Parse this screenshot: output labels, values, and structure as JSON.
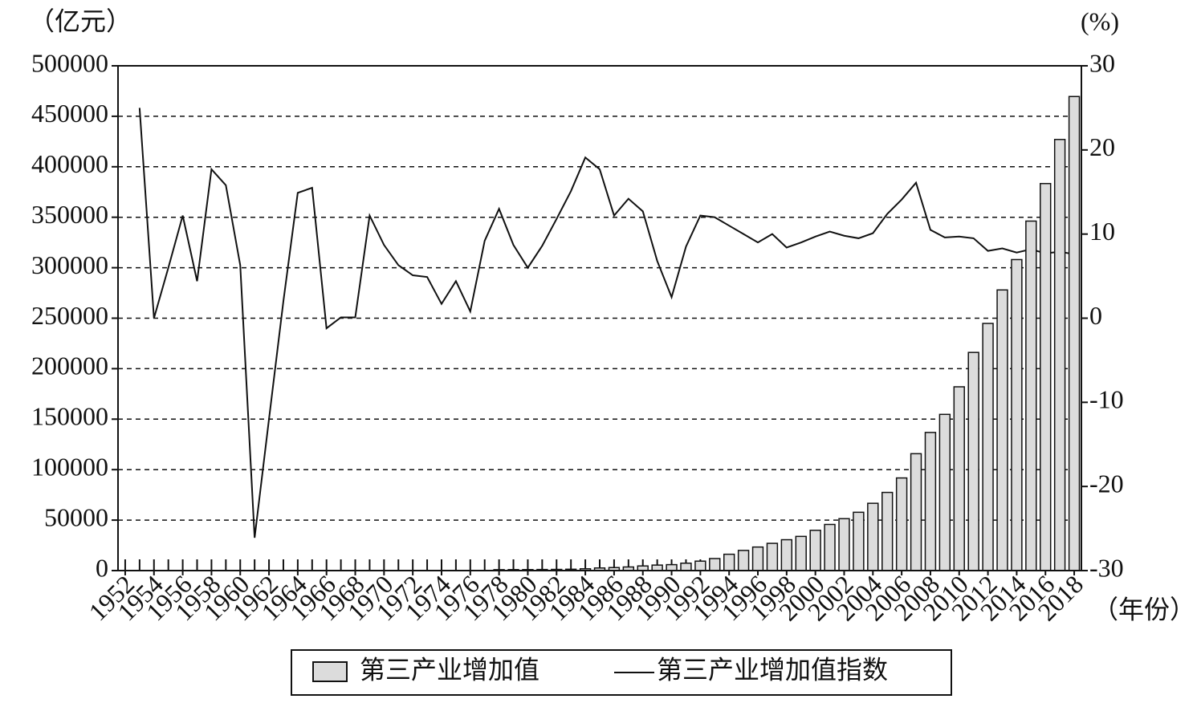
{
  "chart_data": {
    "type": "bar-line",
    "y_label": "（亿元）",
    "y2_label": "(%)",
    "x_label": "（年份）",
    "x": [
      1952,
      1953,
      1954,
      1955,
      1956,
      1957,
      1958,
      1959,
      1960,
      1961,
      1962,
      1963,
      1964,
      1965,
      1966,
      1967,
      1968,
      1969,
      1970,
      1971,
      1972,
      1973,
      1974,
      1975,
      1976,
      1977,
      1978,
      1979,
      1980,
      1981,
      1982,
      1983,
      1984,
      1985,
      1986,
      1987,
      1988,
      1989,
      1990,
      1991,
      1992,
      1993,
      1994,
      1995,
      1996,
      1997,
      1998,
      1999,
      2000,
      2001,
      2002,
      2003,
      2004,
      2005,
      2006,
      2007,
      2008,
      2009,
      2010,
      2011,
      2012,
      2013,
      2014,
      2015,
      2016,
      2017,
      2018
    ],
    "xlim": [
      1951.5,
      2018.5
    ],
    "xticks": [
      1952,
      1954,
      1956,
      1958,
      1960,
      1962,
      1964,
      1966,
      1968,
      1970,
      1972,
      1974,
      1976,
      1978,
      1980,
      1982,
      1984,
      1986,
      1988,
      1990,
      1992,
      1994,
      1996,
      1998,
      2000,
      2002,
      2004,
      2006,
      2008,
      2010,
      2012,
      2014,
      2016,
      2018
    ],
    "ylim": [
      0,
      500000
    ],
    "yticks": [
      0,
      50000,
      100000,
      150000,
      200000,
      250000,
      300000,
      350000,
      400000,
      450000,
      500000
    ],
    "y2lim": [
      -30,
      30
    ],
    "y2ticks": [
      -30,
      -20,
      -10,
      0,
      10,
      20,
      30
    ],
    "grid": true,
    "series": [
      {
        "name": "第三产业增加值",
        "type": "bar",
        "color": "#dcdcdc",
        "values": [
          null,
          null,
          null,
          null,
          null,
          null,
          null,
          null,
          null,
          null,
          null,
          null,
          null,
          null,
          null,
          null,
          null,
          null,
          null,
          null,
          null,
          null,
          null,
          null,
          null,
          null,
          905,
          979,
          982,
          1077,
          1163,
          1338,
          1786,
          2585,
          2994,
          3574,
          4590,
          5448,
          5888,
          7337,
          9357,
          11916,
          16180,
          19978,
          23326,
          26988,
          30580,
          33873,
          39899,
          45701,
          51423,
          57757,
          66650,
          77430,
          91762,
          115787,
          136827,
          154748,
          182038,
          216099,
          244822,
          277979,
          308059,
          346178,
          383365,
          427032,
          469575
        ]
      },
      {
        "name": "第三产业增加值指数",
        "type": "line",
        "axis": "y2",
        "color": "#111111",
        "values": [
          null,
          25,
          0,
          6,
          12.2,
          4.4,
          17.7,
          15.8,
          6.3,
          -26.1,
          -12,
          2,
          14.9,
          15.5,
          -1.2,
          0.1,
          0.1,
          12.2,
          8.7,
          6.3,
          5.1,
          4.9,
          1.7,
          4.4,
          0.8,
          9.2,
          13.0,
          8.7,
          6.0,
          8.6,
          11.8,
          15.1,
          19.1,
          17.7,
          12.2,
          14.2,
          12.7,
          6.8,
          2.5,
          8.5,
          12.2,
          12.0,
          11.0,
          10.0,
          9.0,
          10.0,
          8.4,
          9.0,
          9.7,
          10.3,
          9.8,
          9.5,
          10.1,
          12.4,
          14.1,
          16.1,
          10.5,
          9.6,
          9.7,
          9.5,
          8.0,
          8.3,
          7.8,
          8.2,
          7.7,
          7.9,
          7.6
        ]
      }
    ]
  }
}
